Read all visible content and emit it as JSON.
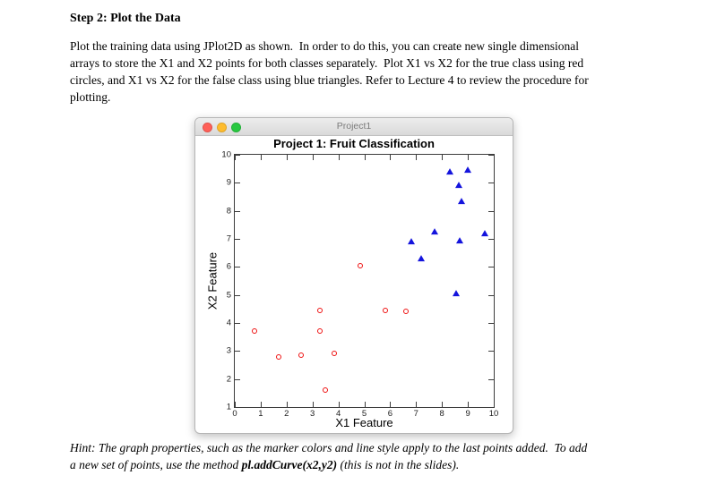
{
  "document": {
    "heading": "Step 2: Plot the Data",
    "paragraph_lines": [
      "Plot the training data using JPlot2D as shown.  In order to do this, you can create new single dimensional",
      "arrays to store the X1 and X2 points for both classes separately.  Plot X1 vs X2 for the true class using red",
      "circles, and X1 vs X2 for the false class using blue triangles. Refer to Lecture 4 to review the procedure for",
      "plotting."
    ],
    "hint": {
      "line1": "Hint: The graph properties, such as the marker colors and line style apply to the last points added.  To add",
      "line2_prefix": "a new set of points, use the method ",
      "line2_bold": "pl.addCurve(x2,y2)",
      "line2_suffix": " (this is not in the slides)."
    }
  },
  "window": {
    "title": "Project1",
    "traffic_lights": [
      {
        "name": "close-button",
        "color": "#ff5f57"
      },
      {
        "name": "minimize-button",
        "color": "#febc2e"
      },
      {
        "name": "zoom-button",
        "color": "#28c840"
      }
    ]
  },
  "chart_data": {
    "type": "scatter",
    "title": "Project 1: Fruit Classification",
    "xlabel": "X1 Feature",
    "ylabel": "X2 Feature",
    "xlim": [
      0,
      10
    ],
    "ylim": [
      1,
      10
    ],
    "xticks": [
      0,
      1,
      2,
      3,
      4,
      5,
      6,
      7,
      8,
      9,
      10
    ],
    "yticks": [
      1,
      2,
      3,
      4,
      5,
      6,
      7,
      8,
      9,
      10
    ],
    "grid": false,
    "legend": "none",
    "series": [
      {
        "name": "true class",
        "marker": "circle-open",
        "color": "#ee1111",
        "points": [
          [
            0.75,
            3.7
          ],
          [
            1.7,
            2.8
          ],
          [
            2.55,
            2.85
          ],
          [
            3.3,
            3.7
          ],
          [
            3.3,
            4.45
          ],
          [
            3.5,
            1.6
          ],
          [
            3.85,
            2.9
          ],
          [
            4.85,
            6.05
          ],
          [
            5.8,
            4.45
          ],
          [
            6.6,
            4.4
          ]
        ]
      },
      {
        "name": "false class",
        "marker": "triangle-filled",
        "color": "#1414dd",
        "points": [
          [
            6.8,
            6.9
          ],
          [
            7.2,
            6.3
          ],
          [
            7.7,
            7.25
          ],
          [
            8.3,
            9.4
          ],
          [
            8.55,
            5.05
          ],
          [
            8.65,
            8.9
          ],
          [
            8.7,
            6.95
          ],
          [
            8.75,
            8.35
          ],
          [
            9.0,
            9.45
          ],
          [
            9.65,
            7.2
          ]
        ]
      }
    ]
  }
}
